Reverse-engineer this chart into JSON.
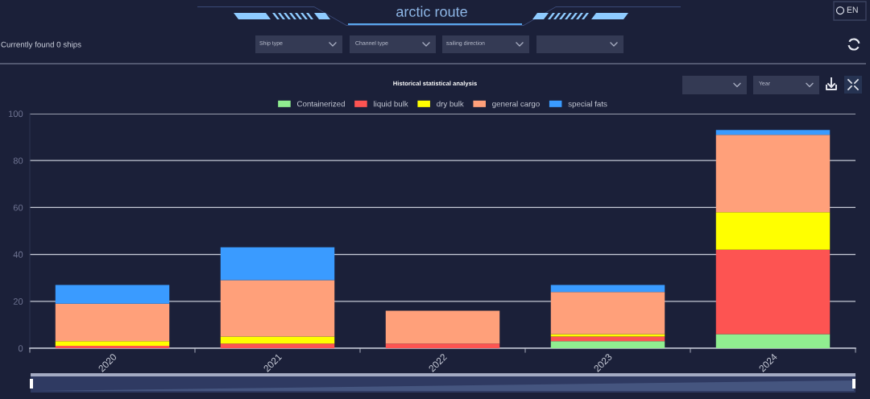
{
  "chart_data": {
    "type": "bar",
    "title": "Historical statistical analysis",
    "categories": [
      "2020",
      "2021",
      "2022",
      "2023",
      "2024"
    ],
    "series": [
      {
        "name": "Containerized",
        "color": "#90ee90",
        "values": [
          0,
          0,
          0,
          3,
          6
        ]
      },
      {
        "name": "liquid bulk",
        "color": "#fd5452",
        "values": [
          1,
          2,
          2,
          2,
          36
        ]
      },
      {
        "name": "dry bulk",
        "color": "#ffff00",
        "values": [
          2,
          3,
          0,
          1,
          16
        ]
      },
      {
        "name": "general cargo",
        "color": "#ffa07a",
        "values": [
          16,
          24,
          14,
          18,
          33
        ]
      },
      {
        "name": "special fats",
        "color": "#3a9bff",
        "values": [
          8,
          14,
          0,
          3,
          2
        ]
      }
    ],
    "stacked": true,
    "ylim": [
      0,
      100
    ],
    "yticks": [
      0,
      20,
      40,
      60,
      80,
      100
    ],
    "grid": "y",
    "legend": "top",
    "annotations": [
      "arctic route",
      "Currently found 0 ships",
      "Ship type",
      "Channel type",
      "sailing direction",
      "Year",
      "EN"
    ]
  }
}
